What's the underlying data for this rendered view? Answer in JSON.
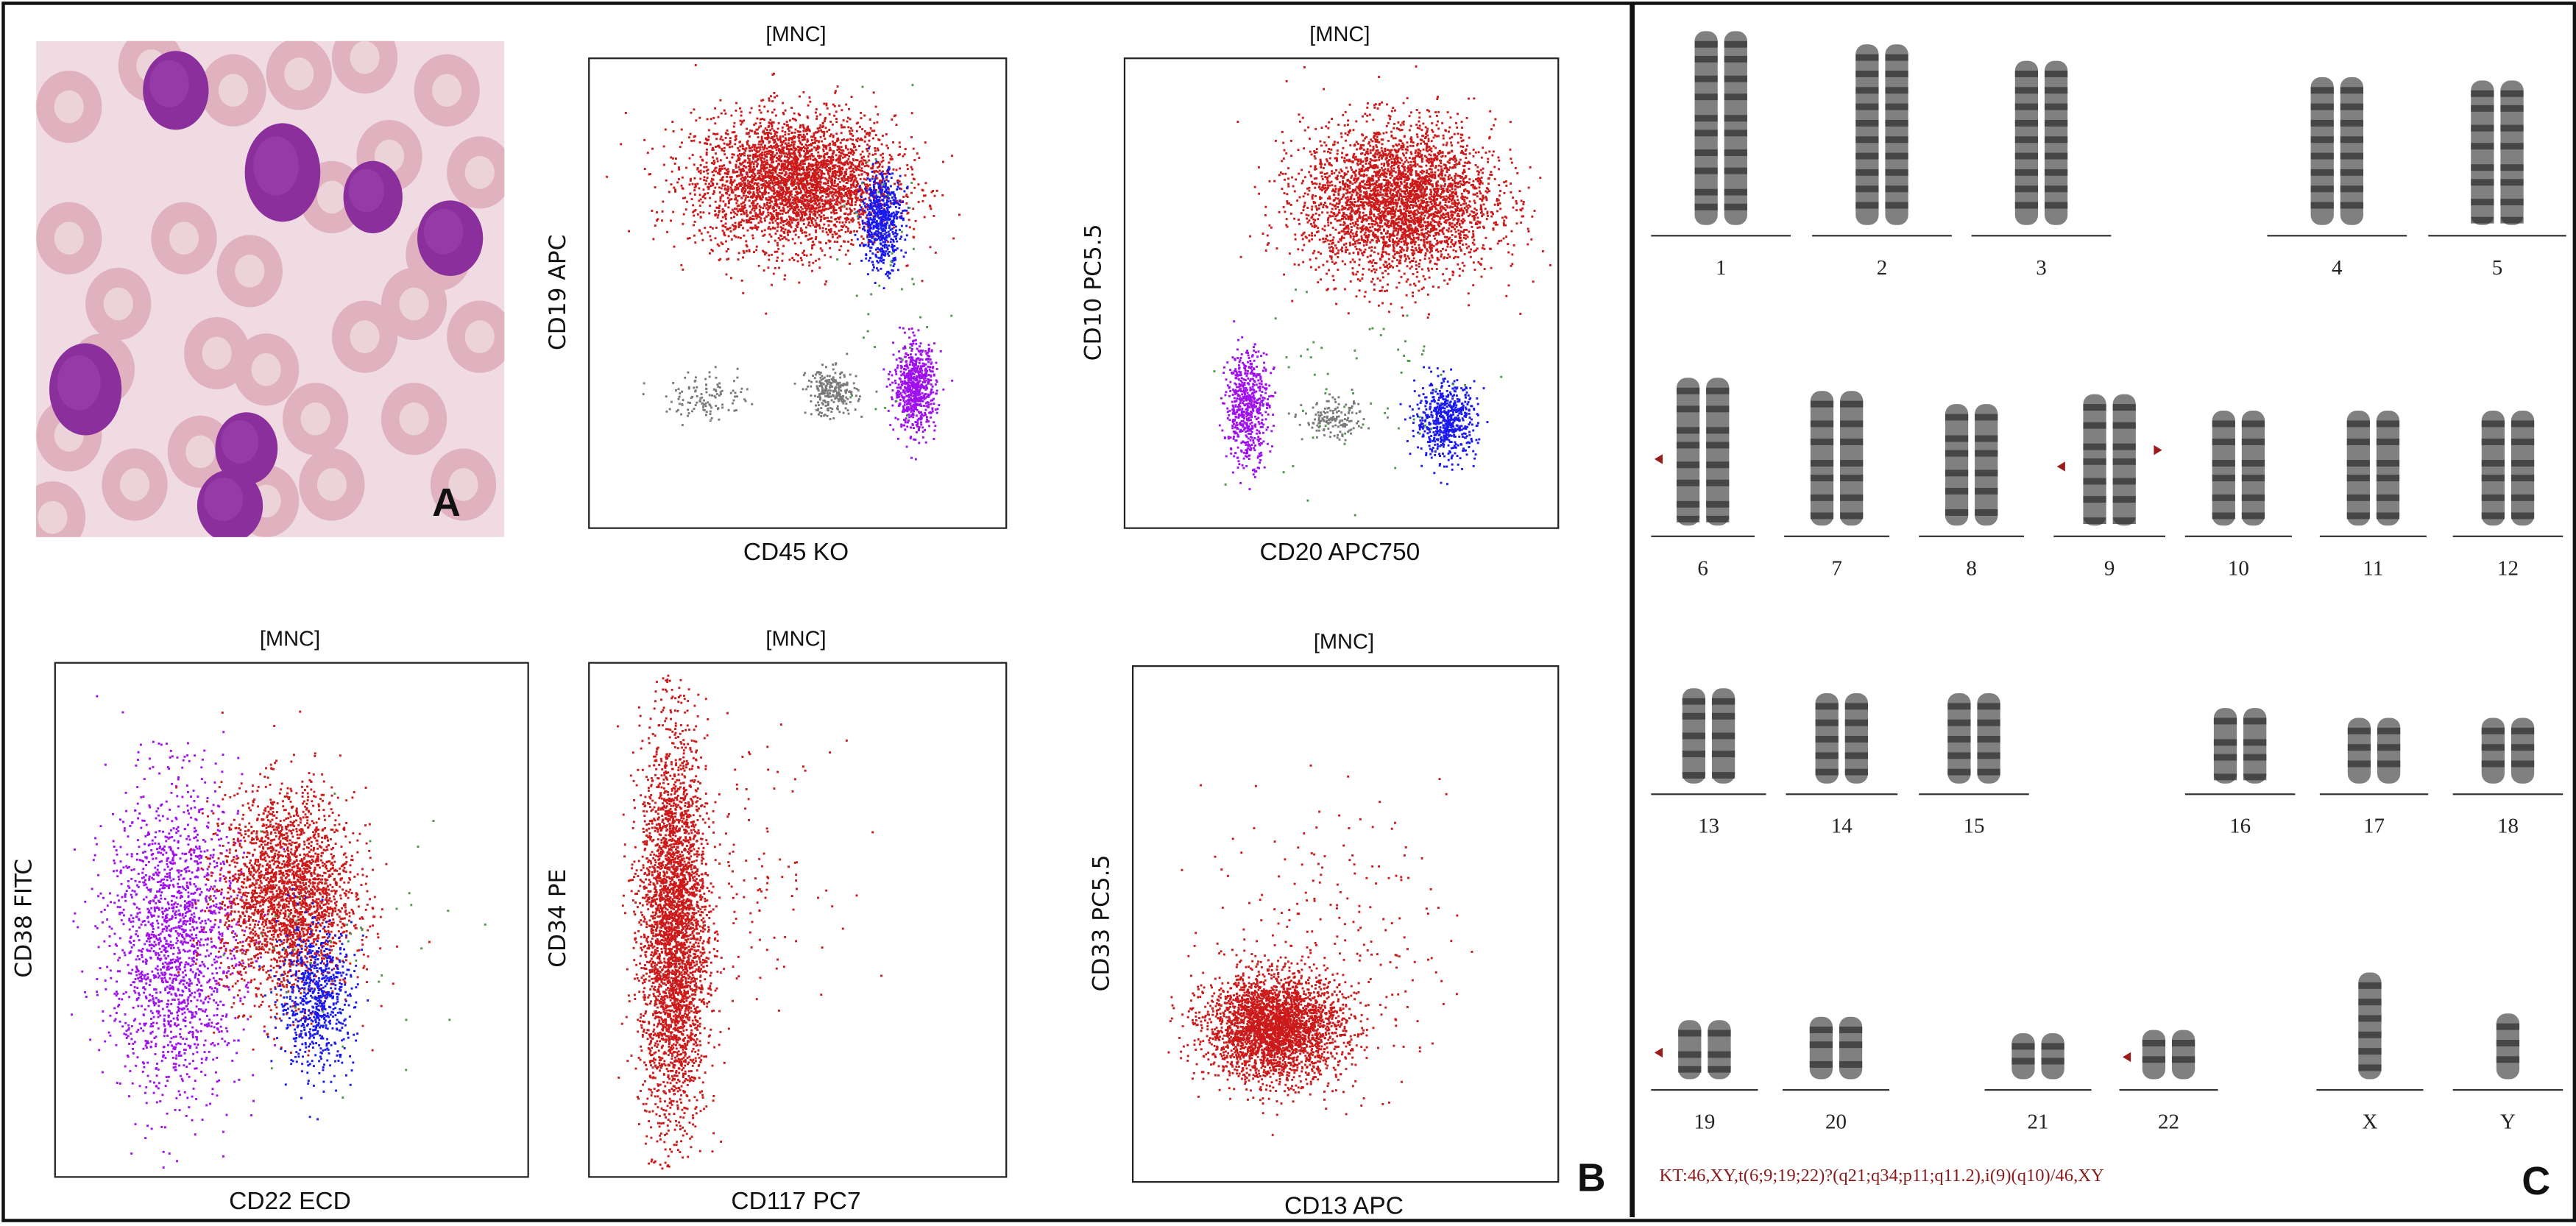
{
  "panels": {
    "a_label": "A",
    "b_label": "B",
    "c_label": "C"
  },
  "smear": {
    "description_colors": {
      "background": "#f0dde3",
      "rbc": "#e2b4c0",
      "blast": "#8a2f9c"
    }
  },
  "colors": {
    "red": "#cc1a1a",
    "blue": "#1a1aee",
    "magenta": "#a010ee",
    "gray": "#7a7a7a",
    "green": "#4a9a4a",
    "arrow": "#9b1c1c"
  },
  "chart_data": [
    {
      "type": "scatter",
      "title": "[MNC]",
      "xlabel": "CD45 KO",
      "ylabel": "CD19 APC",
      "grid": false,
      "populations": [
        {
          "color": "red",
          "center": [
            49,
            74
          ],
          "spread": [
            12,
            7
          ],
          "count": 3500
        },
        {
          "color": "blue",
          "center": [
            70,
            66
          ],
          "spread": [
            2.5,
            5
          ],
          "count": 600
        },
        {
          "color": "magenta",
          "center": [
            78,
            30
          ],
          "spread": [
            2.5,
            4.5
          ],
          "count": 700
        },
        {
          "color": "gray",
          "center": [
            58,
            29
          ],
          "spread": [
            3,
            2.5
          ],
          "count": 250
        },
        {
          "color": "gray",
          "center": [
            28,
            28
          ],
          "spread": [
            5,
            2.5
          ],
          "count": 120
        },
        {
          "color": "green",
          "center": [
            72,
            50
          ],
          "spread": [
            6,
            18
          ],
          "count": 40
        }
      ]
    },
    {
      "type": "scatter",
      "title": "[MNC]",
      "xlabel": "CD20 APC750",
      "ylabel": "CD10 PC5.5",
      "grid": false,
      "populations": [
        {
          "color": "red",
          "center": [
            63,
            70
          ],
          "spread": [
            11,
            8
          ],
          "count": 3500
        },
        {
          "color": "magenta",
          "center": [
            28,
            26
          ],
          "spread": [
            2.5,
            6
          ],
          "count": 600
        },
        {
          "color": "blue",
          "center": [
            74,
            23
          ],
          "spread": [
            3.5,
            4
          ],
          "count": 600
        },
        {
          "color": "gray",
          "center": [
            48,
            23
          ],
          "spread": [
            3.5,
            2
          ],
          "count": 150
        },
        {
          "color": "green",
          "center": [
            55,
            30
          ],
          "spread": [
            15,
            12
          ],
          "count": 60
        }
      ]
    },
    {
      "type": "scatter",
      "title": "[MNC]",
      "xlabel": "CD22 ECD",
      "ylabel": "CD38 FITC",
      "grid": false,
      "populations": [
        {
          "color": "magenta",
          "center": [
            25,
            46
          ],
          "spread": [
            7,
            15
          ],
          "count": 1800
        },
        {
          "color": "red",
          "center": [
            49,
            55
          ],
          "spread": [
            7,
            10
          ],
          "count": 2500
        },
        {
          "color": "blue",
          "center": [
            55,
            35
          ],
          "spread": [
            4,
            7
          ],
          "count": 700
        },
        {
          "color": "green",
          "center": [
            60,
            45
          ],
          "spread": [
            15,
            12
          ],
          "count": 40
        }
      ]
    },
    {
      "type": "scatter",
      "title": "[MNC]",
      "xlabel": "CD117 PC7",
      "ylabel": "CD34 PE",
      "grid": false,
      "populations": [
        {
          "color": "red",
          "center": [
            20,
            48
          ],
          "spread": [
            4,
            19
          ],
          "count": 3500
        },
        {
          "color": "red",
          "center": [
            38,
            60
          ],
          "spread": [
            10,
            12
          ],
          "count": 120
        }
      ]
    },
    {
      "type": "scatter",
      "title": "[MNC]",
      "xlabel": "CD13 APC",
      "ylabel": "CD33 PC5.5",
      "grid": false,
      "populations": [
        {
          "color": "red",
          "center": [
            33,
            30
          ],
          "spread": [
            8,
            5
          ],
          "count": 3000
        },
        {
          "color": "red",
          "center": [
            45,
            45
          ],
          "spread": [
            14,
            14
          ],
          "count": 250
        }
      ]
    }
  ],
  "karyotype": {
    "chromosomes": [
      {
        "label": "1",
        "row": 0,
        "arrows": ""
      },
      {
        "label": "2",
        "row": 0,
        "arrows": ""
      },
      {
        "label": "3",
        "row": 0,
        "arrows": ""
      },
      {
        "label": "4",
        "row": 0,
        "arrows": ""
      },
      {
        "label": "5",
        "row": 0,
        "arrows": ""
      },
      {
        "label": "6",
        "row": 1,
        "arrows": "left"
      },
      {
        "label": "7",
        "row": 1,
        "arrows": ""
      },
      {
        "label": "8",
        "row": 1,
        "arrows": ""
      },
      {
        "label": "9",
        "row": 1,
        "arrows": "both"
      },
      {
        "label": "10",
        "row": 1,
        "arrows": ""
      },
      {
        "label": "11",
        "row": 1,
        "arrows": ""
      },
      {
        "label": "12",
        "row": 1,
        "arrows": ""
      },
      {
        "label": "13",
        "row": 2,
        "arrows": ""
      },
      {
        "label": "14",
        "row": 2,
        "arrows": ""
      },
      {
        "label": "15",
        "row": 2,
        "arrows": ""
      },
      {
        "label": "16",
        "row": 2,
        "arrows": ""
      },
      {
        "label": "17",
        "row": 2,
        "arrows": ""
      },
      {
        "label": "18",
        "row": 2,
        "arrows": ""
      },
      {
        "label": "19",
        "row": 3,
        "arrows": "left"
      },
      {
        "label": "20",
        "row": 3,
        "arrows": ""
      },
      {
        "label": "21",
        "row": 3,
        "arrows": ""
      },
      {
        "label": "22",
        "row": 3,
        "arrows": "left"
      },
      {
        "label": "X",
        "row": 3,
        "arrows": "",
        "single": true
      },
      {
        "label": "Y",
        "row": 3,
        "arrows": "",
        "single": true
      }
    ],
    "formula": "KT:46,XY,t(6;9;19;22)?(q21;q34;p11;q11.2),i(9)(q10)/46,XY"
  }
}
